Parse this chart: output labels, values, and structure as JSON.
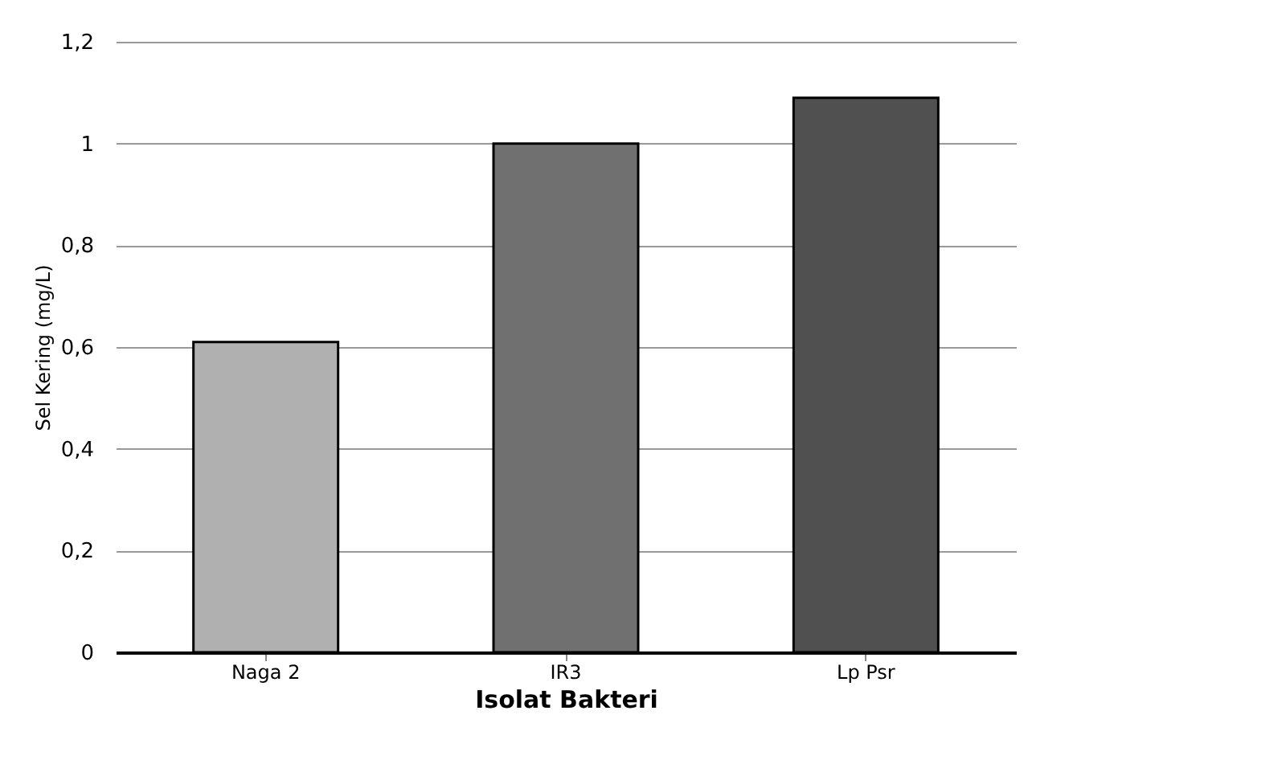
{
  "chart_data": {
    "type": "bar",
    "xlabel": "Isolat Bakteri",
    "ylabel": "Sel Kering (mg/L)",
    "categories": [
      "Naga 2",
      "IR3",
      "Lp Psr"
    ],
    "values": [
      0.61,
      1.0,
      1.09
    ],
    "colors": [
      "#b0b0b0",
      "#707070",
      "#505050"
    ],
    "ylim": [
      0,
      1.2
    ],
    "yticks": [
      {
        "value": 0,
        "label": "0"
      },
      {
        "value": 0.2,
        "label": "0,2"
      },
      {
        "value": 0.4,
        "label": "0,4"
      },
      {
        "value": 0.6,
        "label": "0,6"
      },
      {
        "value": 0.8,
        "label": "0,8"
      },
      {
        "value": 1,
        "label": "1"
      },
      {
        "value": 1.2,
        "label": "1,2"
      }
    ],
    "grid": "y"
  }
}
